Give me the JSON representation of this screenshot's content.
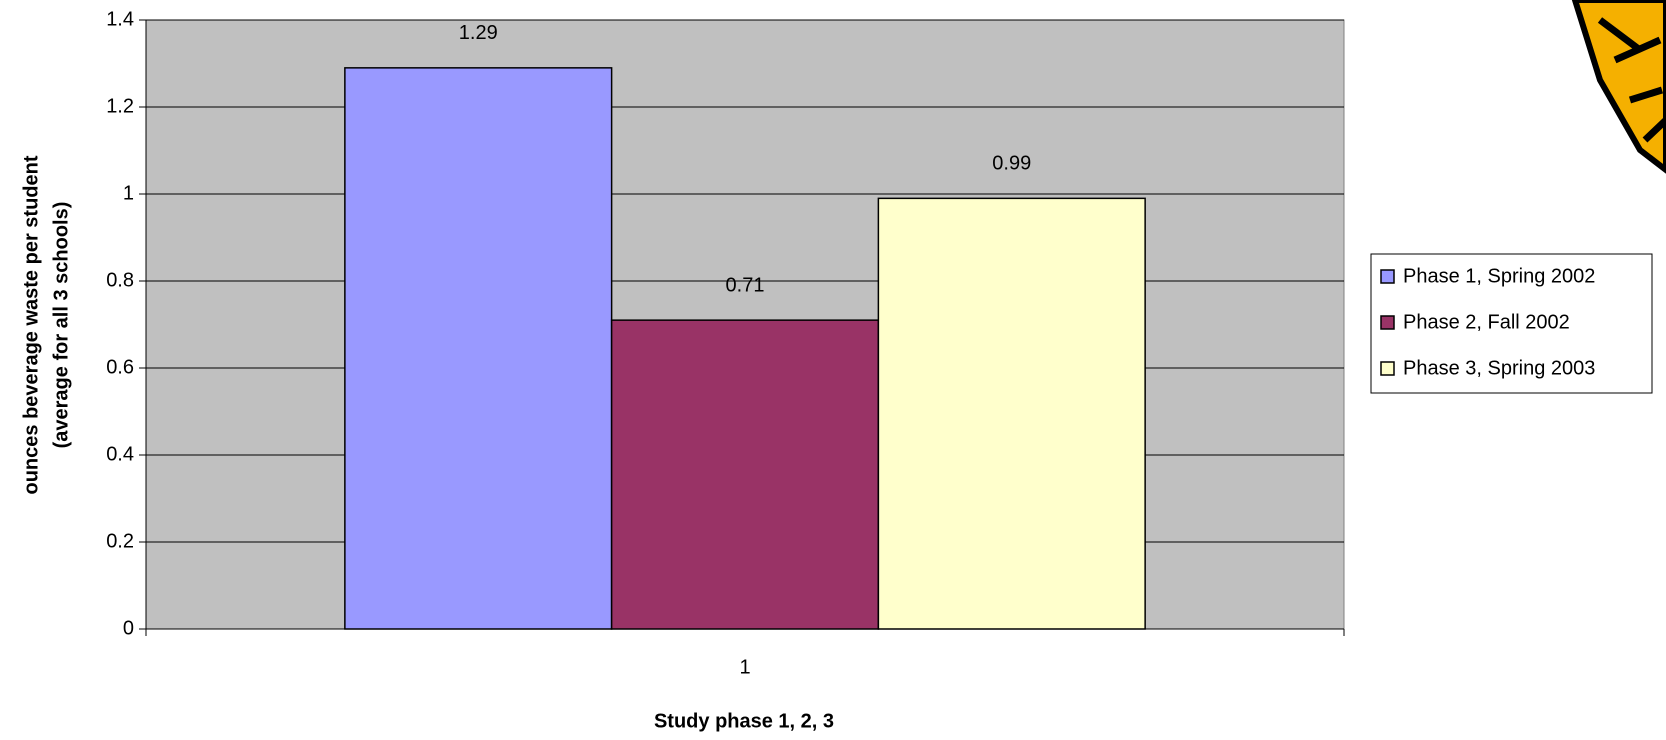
{
  "chart_data": {
    "type": "bar",
    "categories": [
      "1"
    ],
    "series": [
      {
        "name": "Phase 1, Spring 2002",
        "color": "#9999ff",
        "values": [
          1.29
        ]
      },
      {
        "name": "Phase 2, Fall 2002",
        "color": "#993366",
        "values": [
          0.71
        ]
      },
      {
        "name": "Phase 3, Spring 2003",
        "color": "#ffffcc",
        "values": [
          0.99
        ]
      }
    ],
    "x_label": "Study phase 1, 2, 3",
    "y_label": [
      "ounces beverage waste per student",
      "(average for all 3 schools)"
    ],
    "ylim": [
      0,
      1.4
    ],
    "yticks": [
      0,
      0.2,
      0.4,
      0.6,
      0.8,
      1,
      1.2,
      1.4
    ],
    "grid": true,
    "legend": "right",
    "plot_background": "#c0c0c0"
  }
}
